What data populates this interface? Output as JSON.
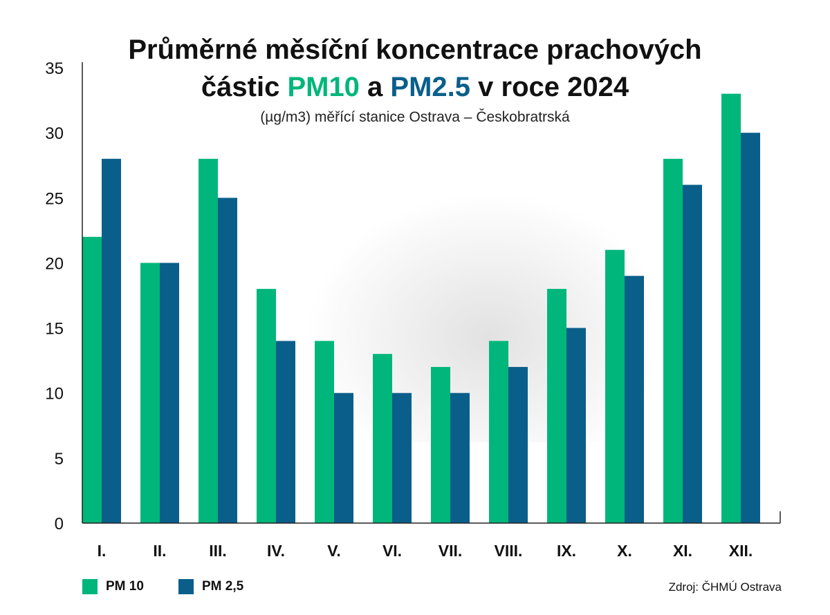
{
  "chart_data": {
    "type": "bar",
    "title_line1": "Průměrné měsíční koncentrace prachových",
    "title_line2_prefix": "částic ",
    "title_pm10": "PM10",
    "title_and": " a ",
    "title_pm25": "PM2.5",
    "title_suffix": " v roce 2024",
    "subtitle": "(µg/m3) měřící stanice Ostrava – Českobratrská",
    "categories": [
      "I.",
      "II.",
      "III.",
      "IV.",
      "V.",
      "VI.",
      "VII.",
      "VIII.",
      "IX.",
      "X.",
      "XI.",
      "XII."
    ],
    "series": [
      {
        "name": "PM 10",
        "color": "#00b67a",
        "values": [
          22,
          20,
          28,
          18,
          14,
          13,
          12,
          14,
          18,
          21,
          28,
          33
        ]
      },
      {
        "name": "PM 2,5",
        "color": "#0a5f8a",
        "values": [
          28,
          20,
          25,
          14,
          10,
          10,
          10,
          12,
          15,
          19,
          26,
          30
        ]
      }
    ],
    "yticks": [
      0,
      5,
      10,
      15,
      20,
      25,
      30,
      35
    ],
    "ylim": [
      0,
      35
    ],
    "grid": false,
    "legend": "bottom-left",
    "source": "Zdroj: ČHMÚ Ostrava"
  }
}
